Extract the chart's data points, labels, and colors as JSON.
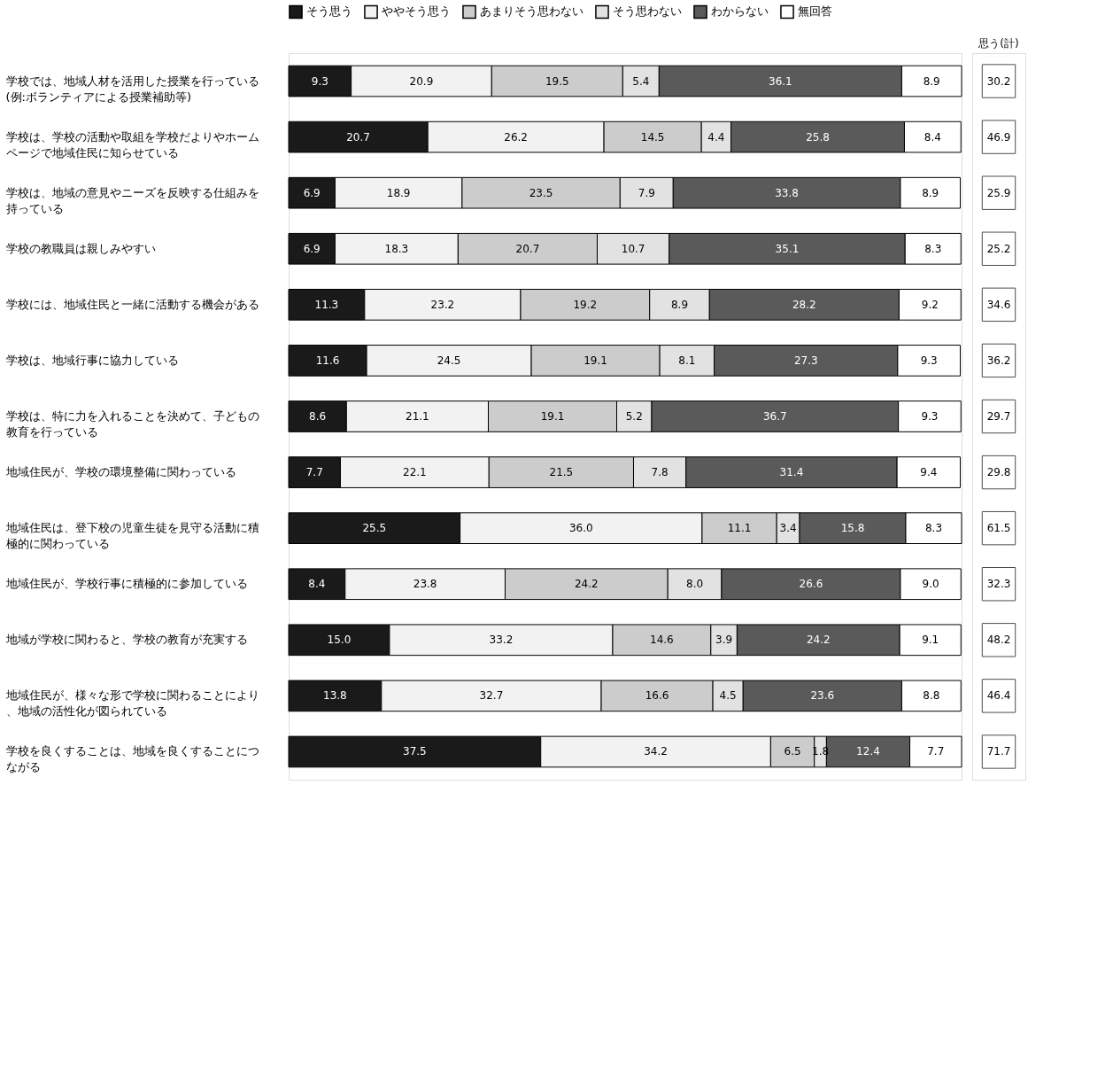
{
  "chart_data": [
    {
      "type": "bar",
      "orientation": "horizontal",
      "stacked": true,
      "legend": "top",
      "categories": [
        "学校では、地域人材を活用した授業を行っている(例:ボランティアによる授業補助等)",
        "学校は、学校の活動や取組を学校だよりやホームページで地域住民に知らせている",
        "学校は、地域の意見やニーズを反映する仕組みを持っている",
        "学校の教職員は親しみやすい",
        "学校には、地域住民と一緒に活動する機会がある",
        "学校は、地域行事に協力している",
        "学校は、特に力を入れることを決めて、子どもの教育を行っている",
        "地域住民が、学校の環境整備に関わっている",
        "地域住民は、登下校の児童生徒を見守る活動に積極的に関わっている",
        "地域住民が、学校行事に積極的に参加している",
        "地域が学校に関わると、学校の教育が充実する",
        "地域住民が、様々な形で学校に関わることにより、地域の活性化が図られている",
        "学校を良くすることは、地域を良くすることにつながる"
      ],
      "series": [
        {
          "name": "そう思う",
          "color": "#1a1a1a",
          "values": [
            9.3,
            20.7,
            6.9,
            6.9,
            11.3,
            11.6,
            8.6,
            7.7,
            25.5,
            8.4,
            15.0,
            13.8,
            37.5
          ],
          "value_labels": [
            "9.3",
            "20.7",
            "6.9",
            "6.9",
            "11.3",
            "11.6",
            "8.6",
            "7.7",
            "25.5",
            "8.4",
            "15.0",
            "13.8",
            "37.5"
          ]
        },
        {
          "name": "ややそう思う",
          "color": "#f2f2f2",
          "values": [
            20.9,
            26.2,
            18.9,
            18.3,
            23.2,
            24.5,
            21.1,
            22.1,
            36.0,
            23.8,
            33.2,
            32.7,
            34.2
          ],
          "value_labels": [
            "20.9",
            "26.2",
            "18.9",
            "18.3",
            "23.2",
            "24.5",
            "21.1",
            "22.1",
            "36.0",
            "23.8",
            "33.2",
            "32.7",
            "34.2"
          ]
        },
        {
          "name": "あまりそう思わない",
          "color": "#cccccc",
          "values": [
            19.5,
            14.5,
            23.5,
            20.7,
            19.2,
            19.1,
            19.1,
            21.5,
            11.1,
            24.2,
            14.6,
            16.6,
            6.5
          ],
          "value_labels": [
            "19.5",
            "14.5",
            "23.5",
            "20.7",
            "19.2",
            "19.1",
            "19.1",
            "21.5",
            "11.1",
            "24.2",
            "14.6",
            "16.6",
            "6.5"
          ]
        },
        {
          "name": "そう思わない",
          "color": "#e2e2e2",
          "values": [
            5.4,
            4.4,
            7.9,
            10.7,
            8.9,
            8.1,
            5.2,
            7.8,
            3.4,
            8.0,
            3.9,
            4.5,
            1.8
          ],
          "value_labels": [
            "5.4",
            "4.4",
            "7.9",
            "10.7",
            "8.9",
            "8.1",
            "5.2",
            "7.8",
            "3.4",
            "8.0",
            "3.9",
            "4.5",
            "1.8"
          ]
        },
        {
          "name": "わからない",
          "color": "#5a5a5a",
          "values": [
            36.1,
            25.8,
            33.8,
            35.1,
            28.2,
            27.3,
            36.7,
            31.4,
            15.8,
            26.6,
            24.2,
            23.6,
            12.4
          ],
          "value_labels": [
            "36.1",
            "25.8",
            "33.8",
            "35.1",
            "28.2",
            "27.3",
            "36.7",
            "31.4",
            "15.8",
            "26.6",
            "24.2",
            "23.6",
            "12.4"
          ]
        },
        {
          "name": "無回答",
          "color": "#ffffff",
          "values": [
            8.9,
            8.4,
            8.9,
            8.3,
            9.2,
            9.3,
            9.3,
            9.4,
            8.3,
            9.0,
            9.1,
            8.8,
            7.7
          ],
          "value_labels": [
            "8.9",
            "8.4",
            "8.9",
            "8.3",
            "9.2",
            "9.3",
            "9.3",
            "9.4",
            "8.3",
            "9.0",
            "9.1",
            "8.8",
            "7.7"
          ]
        }
      ]
    },
    {
      "type": "other",
      "title": "思う(計)",
      "annotations": [
        "30.2",
        "46.9",
        "25.9",
        "25.2",
        "34.6",
        "36.2",
        "29.7",
        "29.8",
        "61.5",
        "32.3",
        "48.2",
        "46.4",
        "71.7"
      ]
    }
  ]
}
